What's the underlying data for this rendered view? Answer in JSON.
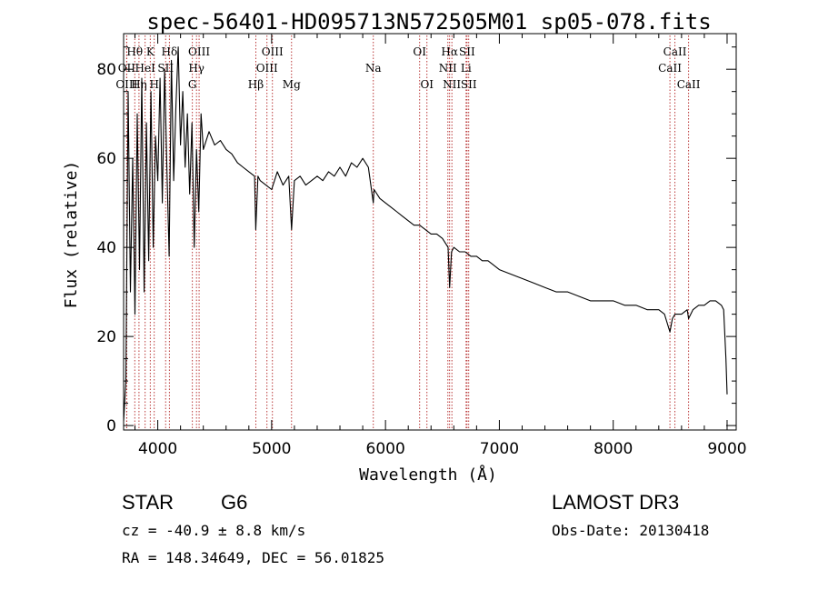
{
  "chart_data": {
    "type": "line",
    "title": "spec-56401-HD095713N572505M01_sp05-078.fits",
    "xlabel": "Wavelength (Å)",
    "ylabel": "Flux (relative)",
    "xlim": [
      3700,
      9080
    ],
    "ylim": [
      -1,
      88
    ],
    "xticks": [
      4000,
      5000,
      6000,
      7000,
      8000,
      9000
    ],
    "yticks": [
      0,
      20,
      40,
      60,
      80
    ],
    "series": [
      {
        "name": "spectrum",
        "x": [
          3700,
          3720,
          3740,
          3760,
          3780,
          3800,
          3820,
          3840,
          3860,
          3880,
          3900,
          3920,
          3940,
          3960,
          3980,
          4000,
          4020,
          4040,
          4060,
          4080,
          4100,
          4120,
          4140,
          4160,
          4180,
          4200,
          4220,
          4240,
          4260,
          4280,
          4300,
          4320,
          4340,
          4360,
          4380,
          4400,
          4450,
          4500,
          4550,
          4600,
          4650,
          4700,
          4750,
          4800,
          4850,
          4861,
          4880,
          4900,
          4950,
          5000,
          5050,
          5100,
          5150,
          5175,
          5200,
          5250,
          5300,
          5350,
          5400,
          5450,
          5500,
          5550,
          5600,
          5650,
          5700,
          5750,
          5800,
          5850,
          5893,
          5900,
          5950,
          6000,
          6050,
          6100,
          6150,
          6200,
          6250,
          6300,
          6350,
          6400,
          6450,
          6500,
          6550,
          6563,
          6580,
          6600,
          6650,
          6700,
          6750,
          6800,
          6850,
          6900,
          6950,
          7000,
          7100,
          7200,
          7300,
          7400,
          7500,
          7600,
          7700,
          7800,
          7900,
          8000,
          8100,
          8200,
          8300,
          8400,
          8450,
          8498,
          8520,
          8542,
          8560,
          8600,
          8650,
          8662,
          8700,
          8750,
          8800,
          8850,
          8900,
          8950,
          8970,
          8990,
          9000
        ],
        "values": [
          1,
          10,
          75,
          30,
          60,
          25,
          70,
          35,
          78,
          30,
          68,
          37,
          75,
          40,
          65,
          55,
          78,
          50,
          80,
          58,
          38,
          82,
          55,
          72,
          85,
          63,
          75,
          58,
          70,
          52,
          68,
          40,
          62,
          48,
          70,
          62,
          66,
          63,
          64,
          62,
          61,
          59,
          58,
          57,
          56,
          44,
          56,
          55,
          54,
          53,
          57,
          54,
          56,
          44,
          55,
          56,
          54,
          55,
          56,
          55,
          57,
          56,
          58,
          56,
          59,
          58,
          60,
          58,
          50,
          53,
          51,
          50,
          49,
          48,
          47,
          46,
          45,
          45,
          44,
          43,
          43,
          42,
          40,
          31,
          39,
          40,
          39,
          39,
          38,
          38,
          37,
          37,
          36,
          35,
          34,
          33,
          32,
          31,
          30,
          30,
          29,
          28,
          28,
          28,
          27,
          27,
          26,
          26,
          25,
          21,
          24,
          25,
          25,
          25,
          26,
          24,
          26,
          27,
          27,
          28,
          28,
          27,
          26,
          15,
          7
        ]
      }
    ],
    "lines": [
      {
        "name": "Hθ",
        "wl": 3798,
        "row": 1
      },
      {
        "name": "OII",
        "wl": 3727,
        "row": 2
      },
      {
        "name": "OIII",
        "wl": 3727,
        "row": 3
      },
      {
        "name": "K",
        "wl": 3934,
        "row": 1
      },
      {
        "name": "HeI",
        "wl": 3889,
        "row": 2
      },
      {
        "name": "Hη",
        "wl": 3835,
        "row": 3
      },
      {
        "name": "Hδ",
        "wl": 4102,
        "row": 1
      },
      {
        "name": "SII",
        "wl": 4069,
        "row": 2
      },
      {
        "name": "H",
        "wl": 3969,
        "row": 3
      },
      {
        "name": "OIII",
        "wl": 4363,
        "row": 1
      },
      {
        "name": "Hγ",
        "wl": 4340,
        "row": 2
      },
      {
        "name": "G",
        "wl": 4304,
        "row": 3
      },
      {
        "name": "OIII",
        "wl": 5007,
        "row": 1
      },
      {
        "name": "OIII",
        "wl": 4959,
        "row": 2
      },
      {
        "name": "Hβ",
        "wl": 4861,
        "row": 3
      },
      {
        "name": "Mg",
        "wl": 5175,
        "row": 3
      },
      {
        "name": "Na",
        "wl": 5893,
        "row": 2
      },
      {
        "name": "OI",
        "wl": 6300,
        "row": 1
      },
      {
        "name": "OI",
        "wl": 6364,
        "row": 3
      },
      {
        "name": "Hα",
        "wl": 6563,
        "row": 1
      },
      {
        "name": "SII",
        "wl": 6716,
        "row": 1
      },
      {
        "name": "NII",
        "wl": 6548,
        "row": 2
      },
      {
        "name": "Li",
        "wl": 6708,
        "row": 2
      },
      {
        "name": "NII",
        "wl": 6583,
        "row": 3
      },
      {
        "name": "SII",
        "wl": 6731,
        "row": 3
      },
      {
        "name": "CaII",
        "wl": 8542,
        "row": 1
      },
      {
        "name": "CaII",
        "wl": 8498,
        "row": 2
      },
      {
        "name": "CaII",
        "wl": 8662,
        "row": 3
      }
    ],
    "colors": {
      "spectrum": "#000000",
      "lines": "#b22222",
      "axes": "#000000"
    }
  },
  "info": {
    "object_class": "STAR",
    "subclass": "G6",
    "survey": "LAMOST DR3",
    "redshift": "cz = -40.9 ± 8.8 km/s",
    "obs_date": "Obs-Date: 20130418",
    "coords": "RA = 148.34649, DEC =  56.01825"
  }
}
